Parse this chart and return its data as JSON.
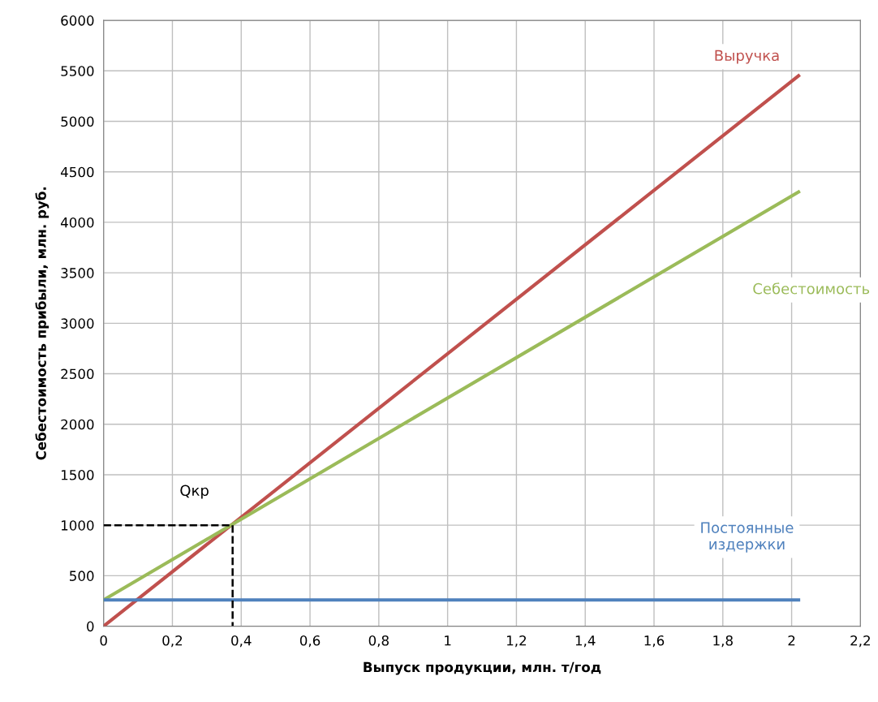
{
  "chart_data": {
    "type": "line",
    "xlabel": "Выпуск продукции, млн. т/год",
    "ylabel": "Себестоимость прибыли, млн. руб.",
    "xlim": [
      0,
      2.2
    ],
    "xticks": [
      0,
      {
        "value": 0.2,
        "label": "0,2"
      },
      {
        "value": 0.4,
        "label": "0,4"
      },
      {
        "value": 0.6,
        "label": "0,6"
      },
      {
        "value": 0.8,
        "label": "0,8"
      },
      1,
      {
        "value": 1.2,
        "label": "1,2"
      },
      {
        "value": 1.4,
        "label": "1,4"
      },
      {
        "value": 1.6,
        "label": "1,6"
      },
      {
        "value": 1.8,
        "label": "1,8"
      },
      2,
      {
        "value": 2.2,
        "label": "2,2"
      }
    ],
    "ylim": [
      0,
      6000
    ],
    "yticks": [
      0,
      500,
      1000,
      1500,
      2000,
      2500,
      3000,
      3500,
      4000,
      4500,
      5000,
      5500,
      6000
    ],
    "grid": true,
    "series": [
      {
        "name": "Выручка",
        "x": [
          0,
          2.02
        ],
        "values": [
          0,
          5450
        ],
        "color": "#c0504d",
        "line_style": "solid"
      },
      {
        "name": "Себестоимость",
        "x": [
          0,
          2.02
        ],
        "values": [
          260,
          4300
        ],
        "color": "#9bbb59",
        "line_style": "solid"
      },
      {
        "name": "Постоянные\nиздержки",
        "x": [
          0,
          2.02
        ],
        "values": [
          260,
          260
        ],
        "color": "#4f81bd",
        "line_style": "solid"
      },
      {
        "x": [
          0,
          0.375,
          0.375
        ],
        "values": [
          1000,
          1000,
          0
        ],
        "color": "#000000",
        "line_style": "dashed"
      }
    ],
    "annotations": [
      "Qкр"
    ]
  }
}
